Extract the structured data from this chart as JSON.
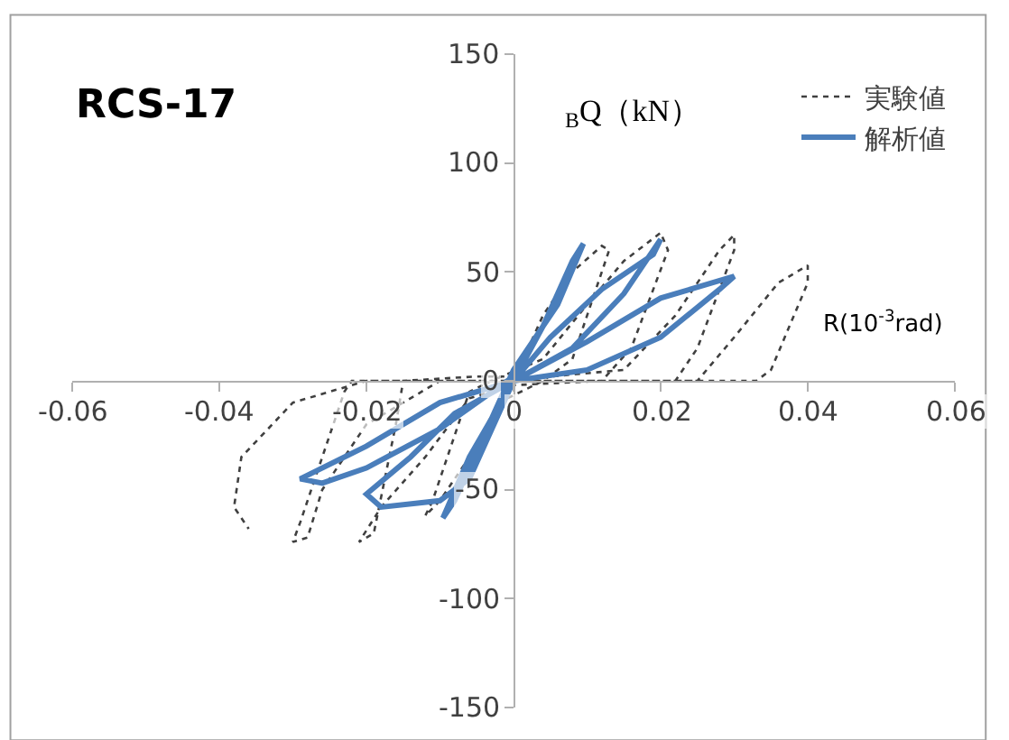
{
  "chart_data": {
    "type": "line",
    "title": "RCS-17",
    "xlabel": "R(10$^{-3}$rad)",
    "ylabel": "$_{B}$Q（kN）",
    "xlim": [
      -0.06,
      0.06
    ],
    "xticks": [
      -0.06,
      -0.04,
      -0.02,
      0,
      0.02,
      0.04,
      0.06
    ],
    "ylim": [
      -150,
      150
    ],
    "yticks": [
      -150,
      -100,
      -50,
      0,
      50,
      100,
      150
    ],
    "legend": "top right",
    "marker": "none",
    "series": [
      {
        "name": "実験値",
        "color": "#404040",
        "line_style": "dotted",
        "x": [
          0,
          0.004,
          0.008,
          0.012,
          0.013,
          0.008,
          0.004,
          -0.002,
          -0.006,
          -0.01,
          -0.012,
          -0.011,
          -0.006,
          -0.003,
          0.004,
          0.01,
          0.015,
          0.02,
          0.021,
          0.016,
          0.012,
          0.0,
          -0.006,
          -0.012,
          -0.018,
          -0.021,
          -0.019,
          -0.016,
          -0.015,
          -0.005,
          0.005,
          0.015,
          0.022,
          0.028,
          0.03,
          0.03,
          0.025,
          0.022,
          0.01,
          -0.01,
          -0.02,
          -0.026,
          -0.028,
          -0.03,
          -0.029,
          -0.023,
          -0.022,
          -0.01,
          0.01,
          0.025,
          0.03,
          0.036,
          0.04,
          0.04,
          0.035,
          0.033,
          0.0,
          -0.02,
          -0.03,
          -0.037,
          -0.038,
          -0.036
        ],
        "values": [
          0,
          30,
          50,
          62,
          60,
          10,
          0,
          -10,
          -35,
          -55,
          -62,
          -55,
          -5,
          0,
          10,
          35,
          55,
          68,
          60,
          15,
          0,
          -2,
          -8,
          -35,
          -58,
          -74,
          -70,
          -20,
          0,
          2,
          2,
          5,
          30,
          60,
          67,
          60,
          15,
          0,
          0,
          0,
          -20,
          -50,
          -72,
          -74,
          -65,
          -5,
          0,
          0,
          0,
          0,
          20,
          45,
          53,
          45,
          5,
          0,
          0,
          0,
          -10,
          -35,
          -58,
          -68
        ]
      },
      {
        "name": "解析値",
        "color": "#4a7ebb",
        "line_style": "solid",
        "x": [
          0,
          0.004,
          0.008,
          0.0095,
          0.006,
          0.0,
          -0.004,
          -0.008,
          -0.0096,
          -0.006,
          0,
          0.005,
          0.012,
          0.019,
          0.02,
          0.015,
          0.008,
          0,
          -0.008,
          -0.014,
          -0.02,
          -0.018,
          -0.01,
          -0.006,
          0,
          0.01,
          0.02,
          0.03,
          0.028,
          0.02,
          0.01,
          0,
          -0.01,
          -0.02,
          -0.029,
          -0.026,
          -0.02,
          -0.01,
          0
        ],
        "values": [
          0,
          25,
          55,
          63,
          35,
          5,
          -25,
          -55,
          -63,
          -35,
          0,
          20,
          42,
          58,
          65,
          40,
          15,
          0,
          -15,
          -35,
          -52,
          -58,
          -55,
          -45,
          0,
          18,
          38,
          48,
          42,
          20,
          5,
          0,
          -10,
          -30,
          -45,
          -47,
          -40,
          -22,
          2
        ]
      }
    ]
  }
}
